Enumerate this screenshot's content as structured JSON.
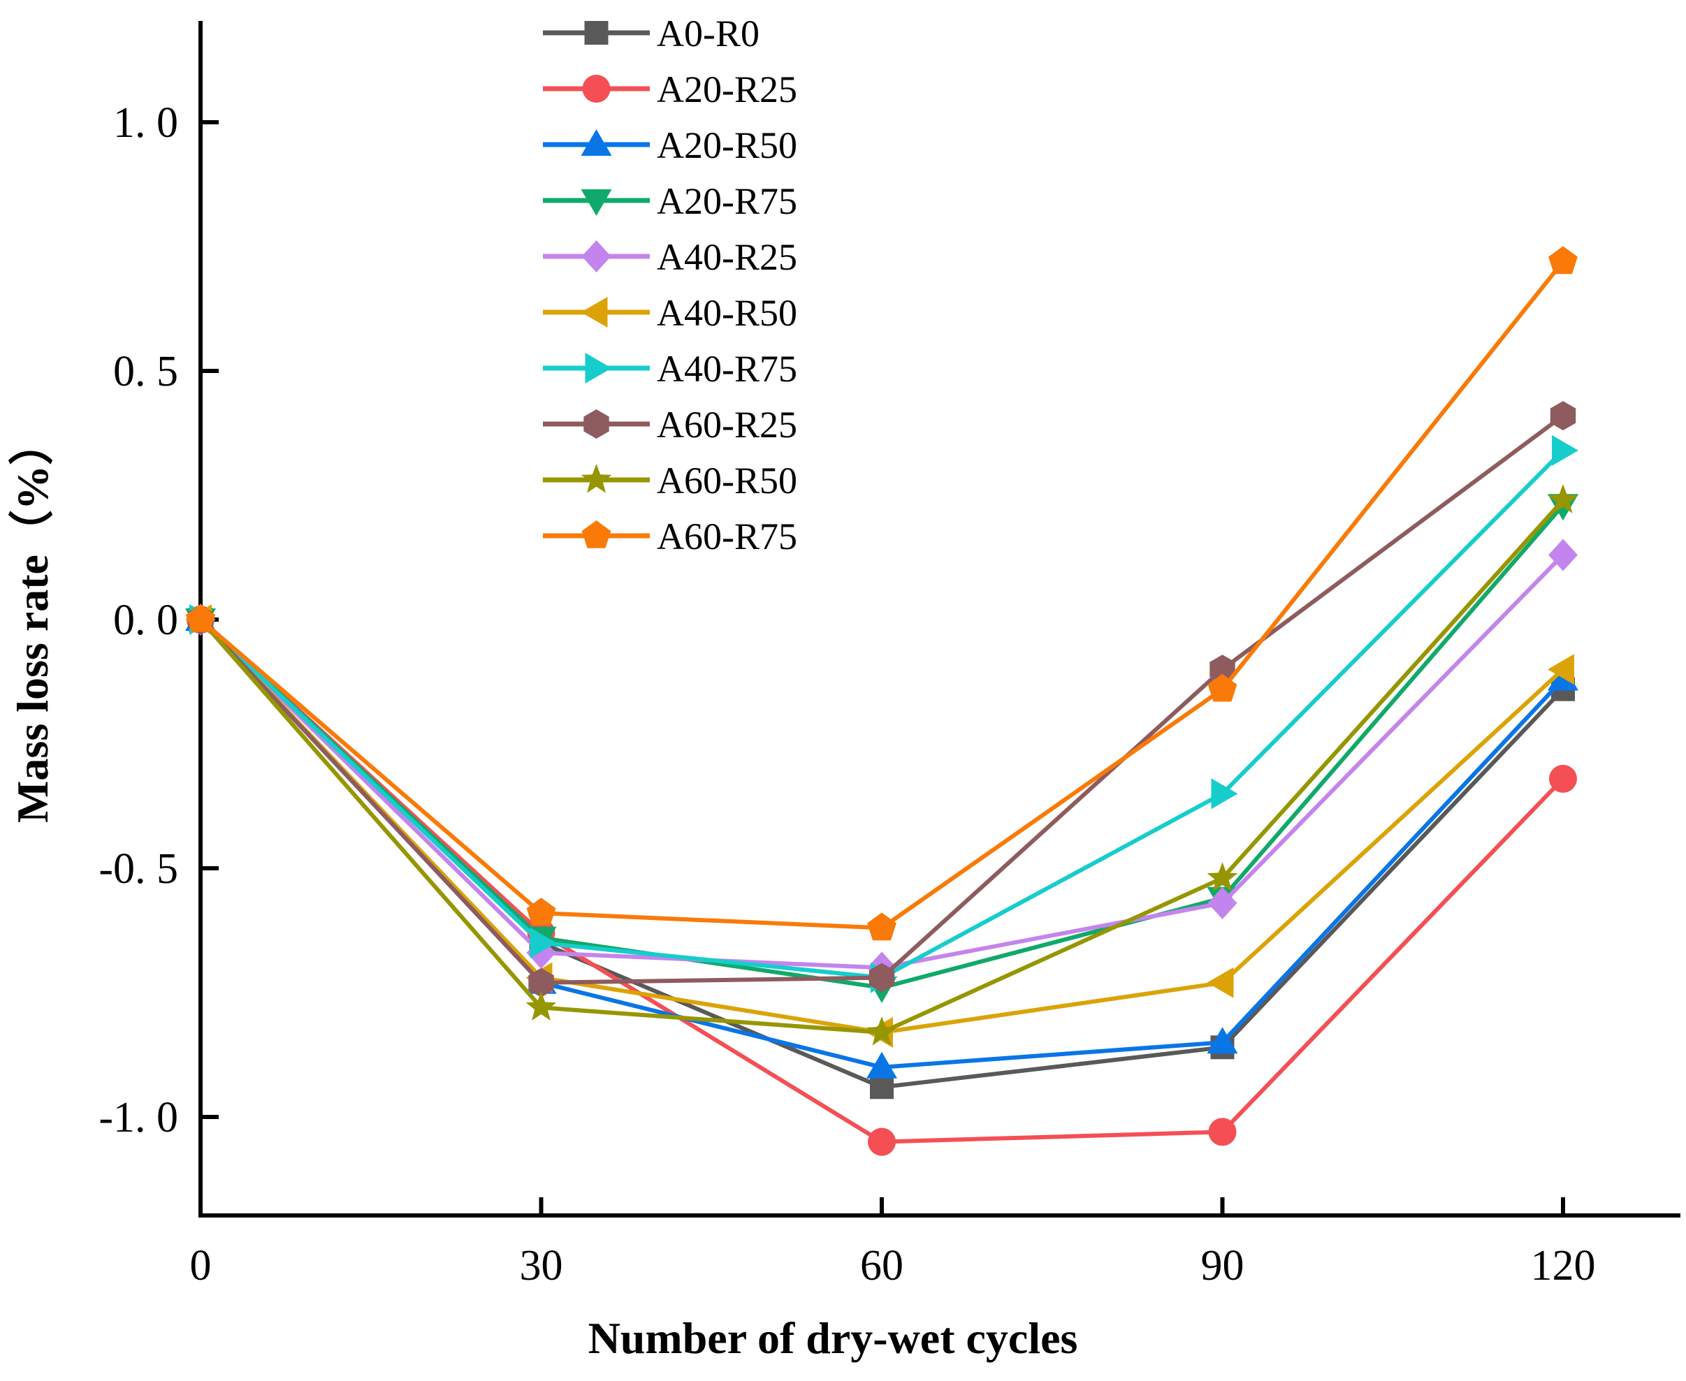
{
  "chart_data": {
    "type": "line",
    "title": "",
    "xlabel": "Number of dry-wet cycles",
    "ylabel": "Mass loss rate（%）",
    "x": [
      0,
      30,
      60,
      90,
      120
    ],
    "x_ticks": [
      0,
      30,
      60,
      90,
      120
    ],
    "x_tick_labels": [
      "0",
      "30",
      "60",
      "90",
      "120"
    ],
    "xlim": [
      0,
      130
    ],
    "y_ticks": [
      1.0,
      0.5,
      0.0,
      -0.5,
      -1.0
    ],
    "y_tick_labels": [
      "1. 0",
      "0. 5",
      "0. 0",
      "-0. 5",
      "-1. 0"
    ],
    "ylim": [
      -1.2,
      1.2
    ],
    "grid": false,
    "legend_position": "top-center",
    "series": [
      {
        "name": "A0-R0",
        "color": "#595959",
        "marker": "square",
        "values": [
          0,
          -0.65,
          -0.94,
          -0.86,
          -0.14
        ]
      },
      {
        "name": "A20-R25",
        "color": "#f44f55",
        "marker": "circle",
        "values": [
          0,
          -0.63,
          -1.05,
          -1.03,
          -0.32
        ]
      },
      {
        "name": "A20-R50",
        "color": "#0a75e6",
        "marker": "triangle-up",
        "values": [
          0,
          -0.73,
          -0.9,
          -0.85,
          -0.12
        ]
      },
      {
        "name": "A20-R75",
        "color": "#11a96b",
        "marker": "triangle-down",
        "values": [
          0,
          -0.64,
          -0.74,
          -0.56,
          0.23
        ]
      },
      {
        "name": "A40-R25",
        "color": "#c484ed",
        "marker": "diamond",
        "values": [
          0,
          -0.67,
          -0.7,
          -0.57,
          0.13
        ]
      },
      {
        "name": "A40-R50",
        "color": "#dba308",
        "marker": "triangle-left",
        "values": [
          0,
          -0.72,
          -0.83,
          -0.73,
          -0.1
        ]
      },
      {
        "name": "A40-R75",
        "color": "#16cdcc",
        "marker": "triangle-right",
        "values": [
          0,
          -0.65,
          -0.72,
          -0.35,
          0.34
        ]
      },
      {
        "name": "A60-R25",
        "color": "#8e5b5f",
        "marker": "hexagon",
        "values": [
          0,
          -0.73,
          -0.72,
          -0.1,
          0.41
        ]
      },
      {
        "name": "A60-R50",
        "color": "#969602",
        "marker": "star",
        "values": [
          0,
          -0.78,
          -0.83,
          -0.52,
          0.24
        ]
      },
      {
        "name": "A60-R75",
        "color": "#f97a08",
        "marker": "pentagon",
        "values": [
          0,
          -0.59,
          -0.62,
          -0.14,
          0.72
        ]
      }
    ]
  }
}
